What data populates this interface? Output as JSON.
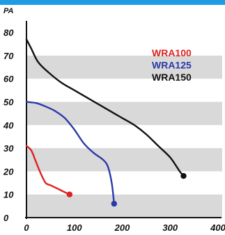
{
  "theme": {
    "accent_bar": "#1e9be4",
    "band_color": "#d9d9d9",
    "axis_color": "#111111"
  },
  "chart_data": {
    "type": "line",
    "ylabel": "PA",
    "xlabel": "",
    "xlim": [
      0,
      400
    ],
    "ylim": [
      0,
      85
    ],
    "xticks": [
      0,
      100,
      200,
      300,
      400
    ],
    "yticks": [
      0,
      10,
      20,
      30,
      40,
      50,
      60,
      70,
      80
    ],
    "grid": "horizontal-bands",
    "legend": "top-right",
    "series": [
      {
        "name": "WRA100",
        "color": "#dd2222",
        "x": [
          0,
          10,
          20,
          30,
          40,
          50,
          60,
          70,
          80,
          90
        ],
        "y": [
          31,
          29,
          24,
          19,
          15,
          14,
          13,
          12,
          11,
          10
        ]
      },
      {
        "name": "WRA125",
        "color": "#2a3aa8",
        "x": [
          0,
          20,
          40,
          60,
          80,
          100,
          120,
          140,
          160,
          170,
          178,
          183
        ],
        "y": [
          50,
          49.5,
          48,
          46,
          43,
          38,
          32,
          28,
          25,
          22,
          15,
          6
        ]
      },
      {
        "name": "WRA150",
        "color": "#111111",
        "x": [
          0,
          10,
          25,
          50,
          75,
          100,
          125,
          150,
          175,
          200,
          225,
          250,
          275,
          300,
          320,
          328
        ],
        "y": [
          77,
          73,
          67,
          62,
          58,
          55,
          52,
          49,
          46,
          43,
          40,
          36,
          31,
          26,
          20,
          18
        ]
      }
    ]
  }
}
